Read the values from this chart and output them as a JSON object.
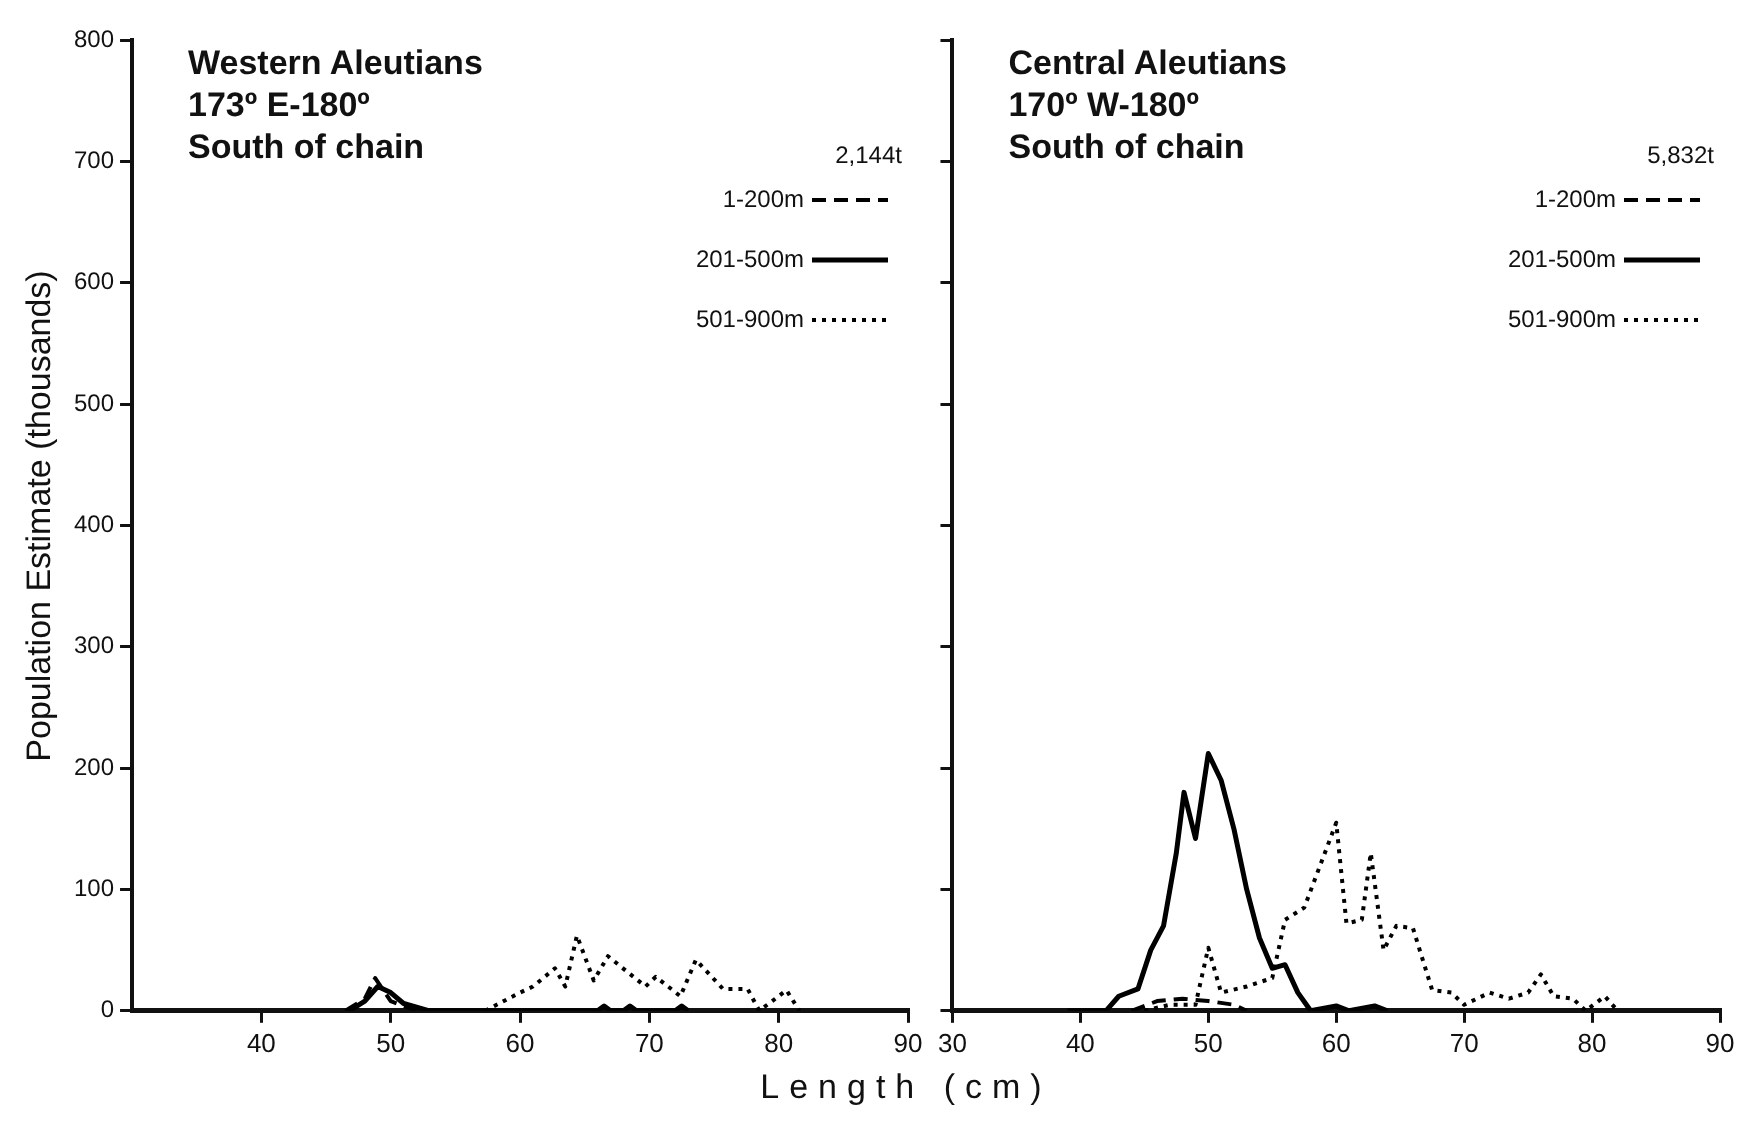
{
  "chart_data": [
    {
      "type": "line",
      "title": "Western Aleutians\n173º E-180º\nSouth of chain",
      "ylabel": "Population Estimate (thousands)",
      "xlabel": "Length (cm)",
      "legend_title": "2,144t",
      "legend": "top right",
      "marker": "none",
      "xlim": [
        30,
        90
      ],
      "xticks": [
        40,
        50,
        60,
        70,
        80,
        90
      ],
      "ylim": [
        0,
        800
      ],
      "yticks": [
        0,
        100,
        200,
        300,
        400,
        500,
        600,
        700,
        800
      ],
      "grid": false,
      "series": [
        {
          "name": "1-200m",
          "color": "#000000",
          "line_style": "dashed",
          "x": [
            46.5,
            48,
            48.8,
            50,
            52
          ],
          "values": [
            0,
            10,
            27,
            8,
            0
          ]
        },
        {
          "name": "201-500m",
          "color": "#000000",
          "line_style": "solid",
          "x": [
            46.8,
            48,
            49,
            50,
            51,
            53,
            66,
            66.5,
            67,
            68,
            68.5,
            69,
            72,
            72.5,
            73
          ],
          "values": [
            0,
            8,
            20,
            15,
            6,
            0,
            0,
            4,
            0,
            0,
            4,
            0,
            0,
            4,
            0
          ]
        },
        {
          "name": "501-900m",
          "color": "#000000",
          "line_style": "dotted",
          "x": [
            57.3,
            60,
            61,
            62.7,
            63.5,
            64.4,
            65.7,
            66.8,
            69.7,
            70.5,
            72.4,
            73.6,
            75.7,
            77.6,
            78.5,
            79.5,
            80.6,
            81.6
          ],
          "values": [
            0,
            15,
            20,
            35,
            20,
            62,
            25,
            45,
            20,
            28,
            12,
            42,
            18,
            18,
            0,
            8,
            17,
            0
          ]
        }
      ]
    },
    {
      "type": "line",
      "title": "Central Aleutians\n170º W-180º\nSouth of chain",
      "legend_title": "5,832t",
      "legend": "top right",
      "marker": "none",
      "xlim": [
        30,
        90
      ],
      "xticks": [
        30,
        40,
        50,
        60,
        70,
        80,
        90
      ],
      "ylim": [
        0,
        800
      ],
      "yticks": [
        0,
        100,
        200,
        300,
        400,
        500,
        600,
        700,
        800
      ],
      "tick_labels": "x",
      "grid": false,
      "series": [
        {
          "name": "1-200m",
          "color": "#000000",
          "line_style": "dashed",
          "x": [
            44,
            46,
            48,
            50,
            52,
            53
          ],
          "values": [
            0,
            8,
            10,
            8,
            5,
            0
          ]
        },
        {
          "name": "201-500m",
          "color": "#000000",
          "line_style": "solid",
          "x": [
            39,
            42,
            43,
            44.5,
            45.5,
            46.5,
            47.5,
            48.1,
            49,
            50,
            51,
            52,
            53,
            54,
            55,
            56,
            57,
            58,
            60,
            61,
            63,
            64
          ],
          "values": [
            0,
            0,
            12,
            18,
            50,
            70,
            130,
            180,
            142,
            212,
            190,
            150,
            100,
            60,
            35,
            38,
            15,
            0,
            4,
            0,
            4,
            0
          ]
        },
        {
          "name": "501-900m",
          "color": "#000000",
          "line_style": "dotted",
          "x": [
            45,
            47,
            49,
            50,
            51,
            53,
            55,
            56,
            57.5,
            60,
            60.8,
            62,
            62.7,
            63.7,
            64.7,
            66,
            67.5,
            69,
            70,
            72,
            73.5,
            75,
            76,
            77,
            78.5,
            79.5,
            81,
            82
          ],
          "values": [
            0,
            5,
            5,
            52,
            15,
            20,
            27,
            75,
            85,
            155,
            72,
            75,
            130,
            50,
            70,
            68,
            17,
            15,
            5,
            15,
            10,
            15,
            30,
            12,
            10,
            0,
            12,
            0
          ]
        }
      ]
    }
  ]
}
